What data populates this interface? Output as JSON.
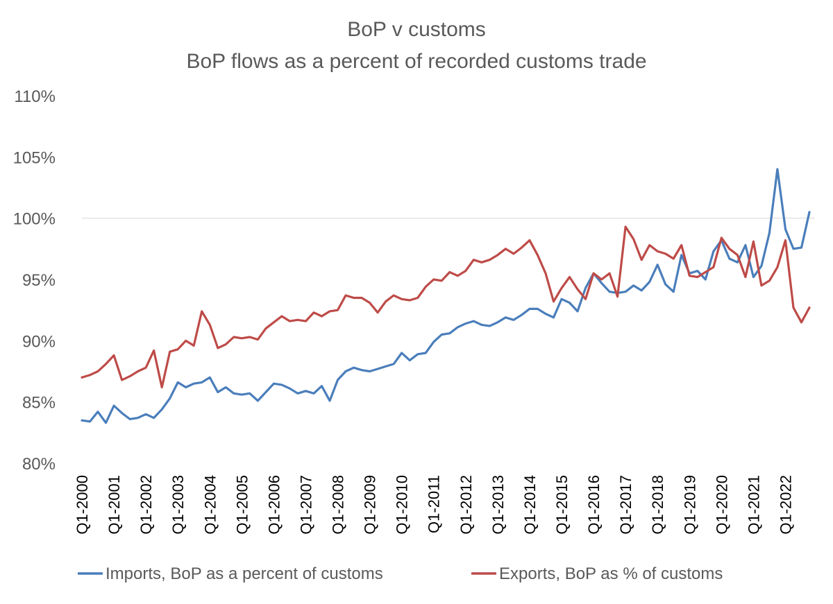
{
  "chart_data": {
    "type": "line",
    "title": "BoP v customs",
    "subtitle": "BoP flows as a percent of recorded customs trade",
    "xlabel": "",
    "ylabel": "",
    "ylim": [
      80,
      110
    ],
    "yticks": [
      80,
      85,
      90,
      95,
      100,
      105,
      110
    ],
    "ytick_labels": [
      "80%",
      "85%",
      "90%",
      "95%",
      "100%",
      "105%",
      "110%"
    ],
    "gridlines": [
      100
    ],
    "grid": false,
    "legend_position": "bottom",
    "x_labels": [
      "Q1-2000",
      "Q1-2001",
      "Q1-2002",
      "Q1-2003",
      "Q1-2004",
      "Q1-2005",
      "Q1-2006",
      "Q1-2007",
      "Q1-2008",
      "Q1-2009",
      "Q1-2010",
      "Q1-2011",
      "Q1-2012",
      "Q1-2013",
      "Q1-2014",
      "Q1-2015",
      "Q1-2016",
      "Q1-2017",
      "Q1-2018",
      "Q1-2019",
      "Q1-2020",
      "Q1-2021",
      "Q1-2022"
    ],
    "x": [
      "Q1-2000",
      "Q2-2000",
      "Q3-2000",
      "Q4-2000",
      "Q1-2001",
      "Q2-2001",
      "Q3-2001",
      "Q4-2001",
      "Q1-2002",
      "Q2-2002",
      "Q3-2002",
      "Q4-2002",
      "Q1-2003",
      "Q2-2003",
      "Q3-2003",
      "Q4-2003",
      "Q1-2004",
      "Q2-2004",
      "Q3-2004",
      "Q4-2004",
      "Q1-2005",
      "Q2-2005",
      "Q3-2005",
      "Q4-2005",
      "Q1-2006",
      "Q2-2006",
      "Q3-2006",
      "Q4-2006",
      "Q1-2007",
      "Q2-2007",
      "Q3-2007",
      "Q4-2007",
      "Q1-2008",
      "Q2-2008",
      "Q3-2008",
      "Q4-2008",
      "Q1-2009",
      "Q2-2009",
      "Q3-2009",
      "Q4-2009",
      "Q1-2010",
      "Q2-2010",
      "Q3-2010",
      "Q4-2010",
      "Q1-2011",
      "Q2-2011",
      "Q3-2011",
      "Q4-2011",
      "Q1-2012",
      "Q2-2012",
      "Q3-2012",
      "Q4-2012",
      "Q1-2013",
      "Q2-2013",
      "Q3-2013",
      "Q4-2013",
      "Q1-2014",
      "Q2-2014",
      "Q3-2014",
      "Q4-2014",
      "Q1-2015",
      "Q2-2015",
      "Q3-2015",
      "Q4-2015",
      "Q1-2016",
      "Q2-2016",
      "Q3-2016",
      "Q4-2016",
      "Q1-2017",
      "Q2-2017",
      "Q3-2017",
      "Q4-2017",
      "Q1-2018",
      "Q2-2018",
      "Q3-2018",
      "Q4-2018",
      "Q1-2019",
      "Q2-2019",
      "Q3-2019",
      "Q4-2019",
      "Q1-2020",
      "Q2-2020",
      "Q3-2020",
      "Q4-2020",
      "Q1-2021",
      "Q2-2021",
      "Q3-2021",
      "Q4-2021",
      "Q1-2022",
      "Q2-2022",
      "Q3-2022",
      "Q4-2022"
    ],
    "series": [
      {
        "name": "Imports, BoP as a percent of customs",
        "color": "#4a7ebb",
        "values": [
          83.5,
          83.4,
          84.2,
          83.3,
          84.7,
          84.1,
          83.6,
          83.7,
          84.0,
          83.7,
          84.4,
          85.3,
          86.6,
          86.2,
          86.5,
          86.6,
          87.0,
          85.8,
          86.2,
          85.7,
          85.6,
          85.7,
          85.1,
          85.8,
          86.5,
          86.4,
          86.1,
          85.7,
          85.9,
          85.7,
          86.3,
          85.1,
          86.8,
          87.5,
          87.8,
          87.6,
          87.5,
          87.7,
          87.9,
          88.1,
          89.0,
          88.4,
          88.9,
          89.0,
          89.9,
          90.5,
          90.6,
          91.1,
          91.4,
          91.6,
          91.3,
          91.2,
          91.5,
          91.9,
          91.7,
          92.1,
          92.6,
          92.6,
          92.2,
          91.9,
          93.4,
          93.1,
          92.4,
          94.3,
          95.5,
          94.7,
          94.0,
          93.9,
          94.0,
          94.5,
          94.1,
          94.8,
          96.2,
          94.6,
          94.0,
          97.0,
          95.5,
          95.7,
          95.0,
          97.3,
          98.2,
          96.7,
          96.4,
          97.8,
          95.2,
          96.1,
          98.8,
          104.0,
          99.1,
          97.5,
          97.6,
          100.5
        ]
      },
      {
        "name": "Exports, BoP as % of customs",
        "color": "#be4b48",
        "values": [
          87.0,
          87.2,
          87.5,
          88.1,
          88.8,
          86.8,
          87.1,
          87.5,
          87.8,
          89.2,
          86.2,
          89.1,
          89.3,
          90.0,
          89.6,
          92.4,
          91.3,
          89.4,
          89.7,
          90.3,
          90.2,
          90.3,
          90.1,
          91.0,
          91.5,
          92.0,
          91.6,
          91.7,
          91.6,
          92.3,
          92.0,
          92.4,
          92.5,
          93.7,
          93.5,
          93.5,
          93.1,
          92.3,
          93.2,
          93.7,
          93.4,
          93.3,
          93.5,
          94.4,
          95.0,
          94.9,
          95.6,
          95.3,
          95.7,
          96.6,
          96.4,
          96.6,
          97.0,
          97.5,
          97.1,
          97.6,
          98.2,
          97.0,
          95.5,
          93.2,
          94.3,
          95.2,
          94.2,
          93.4,
          95.5,
          95.0,
          95.5,
          93.6,
          99.3,
          98.3,
          96.6,
          97.8,
          97.3,
          97.1,
          96.7,
          97.8,
          95.3,
          95.2,
          95.6,
          96.0,
          98.4,
          97.5,
          97.0,
          95.2,
          98.1,
          94.5,
          94.9,
          96.0,
          98.2,
          92.7,
          91.5,
          92.7
        ]
      }
    ]
  }
}
